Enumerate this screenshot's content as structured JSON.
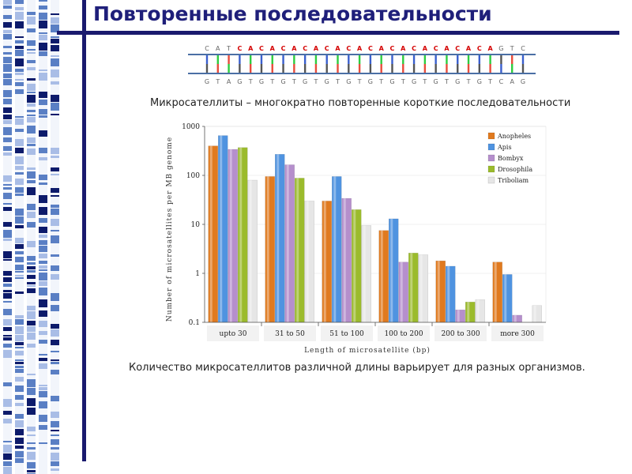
{
  "slide": {
    "title": "Повторенные последовательности",
    "caption_top": "Микросателлиты – многократно повторенные короткие последовательности",
    "caption_bottom": "Количество микросателлитов различной длины варьирует для разных организмов."
  },
  "dna": {
    "top_strand": "CATCACACACACACACACACACACACAGTC",
    "bottom_strand": "GTAGTGTGTGTGTGTGTGTGTGTGTGTCAG",
    "repeat_color": "#d40000",
    "flank_color": "#666666",
    "strand_color": "#4a6fa5"
  },
  "chart_data": {
    "type": "bar",
    "yscale": "log",
    "ylim": [
      0.1,
      1000
    ],
    "yticks": [
      "0.1",
      "1",
      "10",
      "100",
      "1000"
    ],
    "xlabel": "Length of microsatellite (bp)",
    "ylabel": "Number of microsatellites per MB genome",
    "legend_position": "top-right",
    "categories": [
      "upto 30",
      "31 to 50",
      "51 to 100",
      "100 to 200",
      "200 to 300",
      "more 300"
    ],
    "series": [
      {
        "name": "Anopheles",
        "color": "#e07a1f",
        "values": [
          400,
          95,
          30,
          7.5,
          1.8,
          1.7
        ]
      },
      {
        "name": "Apis",
        "color": "#4f93e0",
        "values": [
          650,
          270,
          95,
          13,
          1.4,
          0.95
        ]
      },
      {
        "name": "Bombyx",
        "color": "#b58fcc",
        "values": [
          340,
          165,
          34,
          1.7,
          0.18,
          0.14
        ]
      },
      {
        "name": "Drosophila",
        "color": "#9bbb2c",
        "values": [
          370,
          88,
          20,
          2.6,
          0.26,
          0
        ]
      },
      {
        "name": "Triboliam",
        "color": "#e6e6e6",
        "values": [
          80,
          30,
          9.5,
          2.4,
          0.29,
          0.22
        ]
      }
    ]
  }
}
